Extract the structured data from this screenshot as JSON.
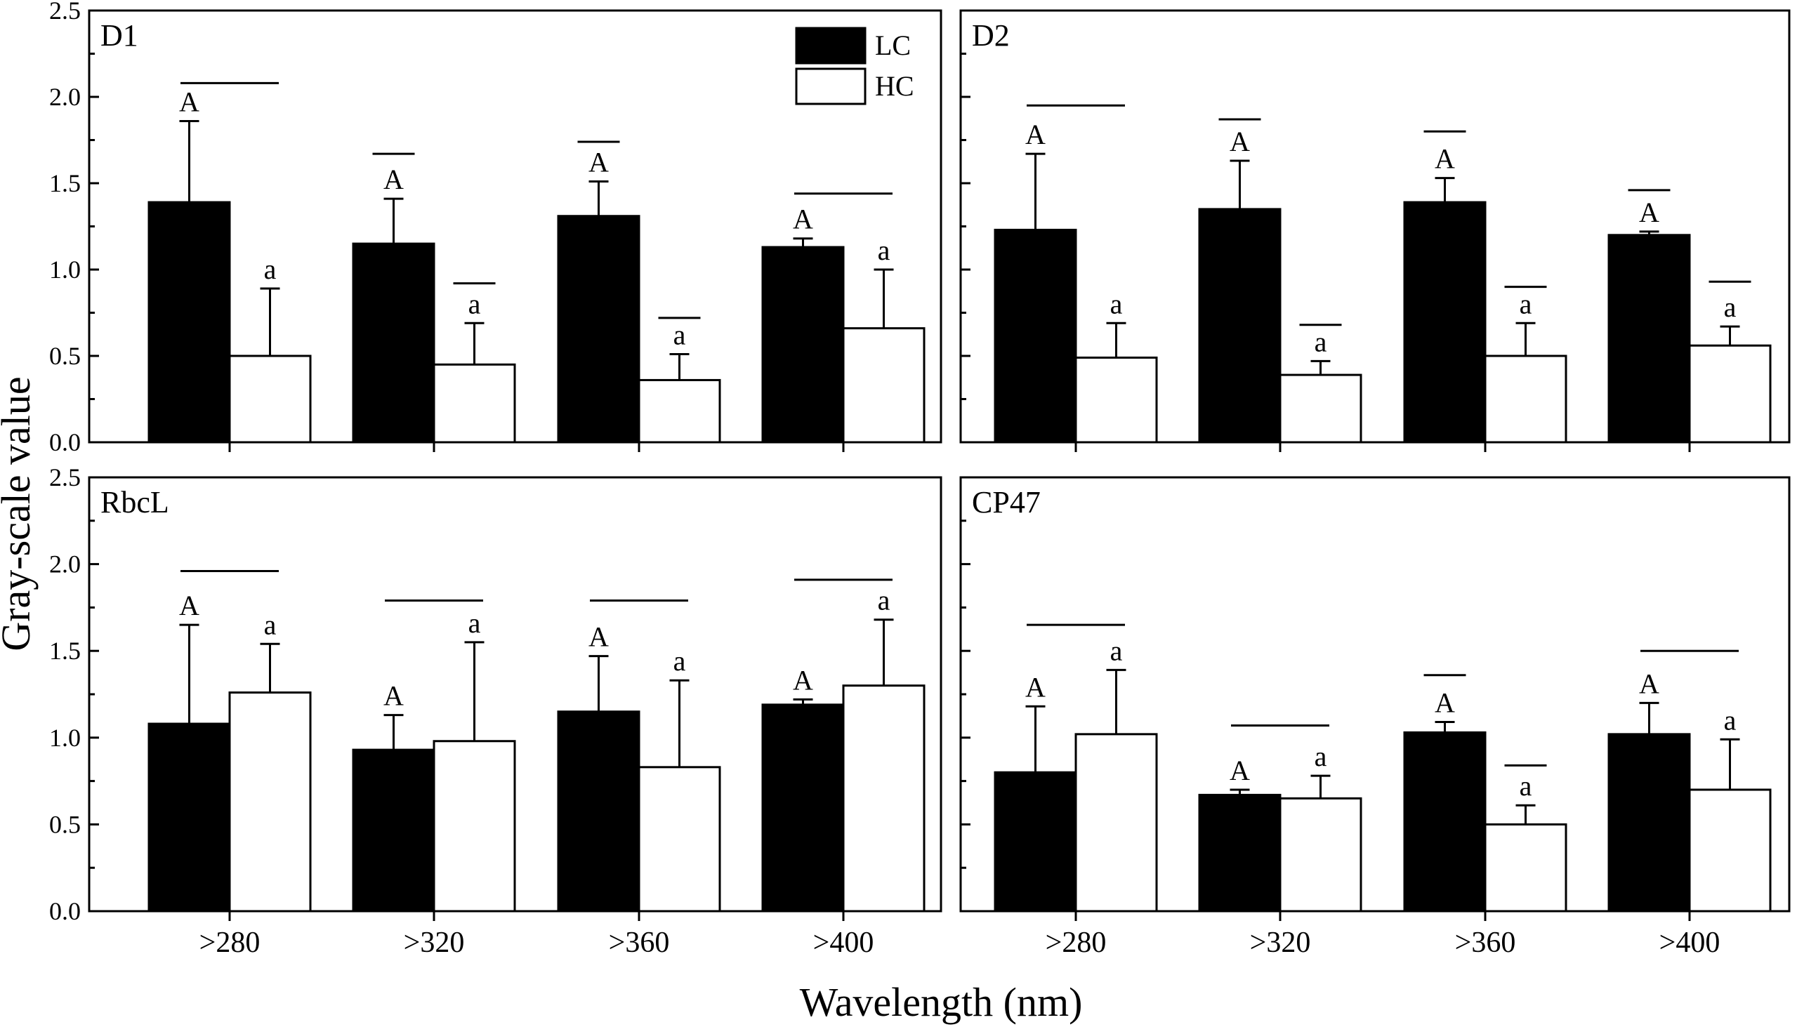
{
  "chart_data": {
    "type": "bar",
    "xlabel": "Wavelength (nm)",
    "ylabel": "Gray-scale value",
    "ylim": [
      0,
      2.5
    ],
    "yticks": [
      "0.0",
      "0.5",
      "1.0",
      "1.5",
      "2.0",
      "2.5"
    ],
    "categories": [
      ">280",
      ">320",
      ">360",
      ">400"
    ],
    "legend": {
      "position": "top-right of panel D1",
      "entries": [
        {
          "name": "LC",
          "color": "#000000"
        },
        {
          "name": "HC",
          "color": "#ffffff"
        }
      ]
    },
    "panels": [
      {
        "label": "D1",
        "series": [
          {
            "name": "LC",
            "values": [
              1.39,
              1.15,
              1.31,
              1.13
            ],
            "errors": [
              0.47,
              0.26,
              0.2,
              0.05
            ],
            "letters": [
              "A",
              "A",
              "A",
              "A"
            ]
          },
          {
            "name": "HC",
            "values": [
              0.5,
              0.45,
              0.36,
              0.66
            ],
            "errors": [
              0.39,
              0.24,
              0.15,
              0.34
            ],
            "letters": [
              "a",
              "a",
              "a",
              "a"
            ]
          }
        ],
        "bars": [
          [
            0,
            1
          ],
          [
            0
          ],
          [
            0
          ],
          [
            0
          ]
        ],
        "bar_levels": [
          2.08,
          1.67,
          1.74,
          1.44
        ],
        "bar_levels_b": [
          null,
          0.92,
          0.72,
          null
        ]
      },
      {
        "label": "D2",
        "series": [
          {
            "name": "LC",
            "values": [
              1.23,
              1.35,
              1.39,
              1.2
            ],
            "errors": [
              0.44,
              0.28,
              0.14,
              0.02
            ],
            "letters": [
              "A",
              "A",
              "A",
              "A"
            ]
          },
          {
            "name": "HC",
            "values": [
              0.49,
              0.39,
              0.5,
              0.56
            ],
            "errors": [
              0.2,
              0.08,
              0.19,
              0.11
            ],
            "letters": [
              "a",
              "a",
              "a",
              "a"
            ]
          }
        ],
        "bar_levels": [
          1.95,
          1.87,
          1.8,
          1.46
        ],
        "bar_levels_b": [
          null,
          0.68,
          0.9,
          0.93
        ]
      },
      {
        "label": "RbcL",
        "series": [
          {
            "name": "LC",
            "values": [
              1.08,
              0.93,
              1.15,
              1.19
            ],
            "errors": [
              0.57,
              0.2,
              0.32,
              0.03
            ],
            "letters": [
              "A",
              "A",
              "A",
              "A"
            ]
          },
          {
            "name": "HC",
            "values": [
              1.26,
              0.98,
              0.83,
              1.3
            ],
            "errors": [
              0.28,
              0.57,
              0.5,
              0.38
            ],
            "letters": [
              "a",
              "a",
              "a",
              "a"
            ]
          }
        ],
        "bar_levels": [
          1.96,
          1.79,
          1.79,
          1.91
        ],
        "bar_levels_b": [
          null,
          null,
          null,
          null
        ]
      },
      {
        "label": "CP47",
        "series": [
          {
            "name": "LC",
            "values": [
              0.8,
              0.67,
              1.03,
              1.02
            ],
            "errors": [
              0.38,
              0.03,
              0.06,
              0.18
            ],
            "letters": [
              "A",
              "A",
              "A",
              "A"
            ]
          },
          {
            "name": "HC",
            "values": [
              1.02,
              0.65,
              0.5,
              0.7
            ],
            "errors": [
              0.37,
              0.13,
              0.11,
              0.29
            ],
            "letters": [
              "a",
              "a",
              "a",
              "a"
            ]
          }
        ],
        "bar_levels": [
          1.65,
          1.07,
          1.36,
          1.5
        ],
        "bar_levels_b": [
          null,
          null,
          0.84,
          null
        ]
      }
    ]
  }
}
